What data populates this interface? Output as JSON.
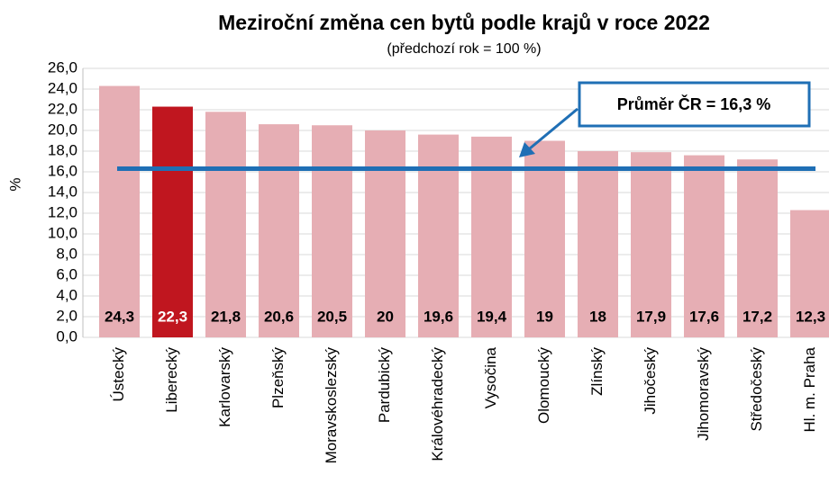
{
  "chart_data": {
    "type": "bar",
    "title": "Meziroční změna cen bytů podle krajů v roce 2022",
    "subtitle": "(předchozí rok = 100 %)",
    "y_label": "%",
    "categories": [
      "Ústecký",
      "Liberecký",
      "Karlovarský",
      "Plzeňský",
      "Moravskoslezský",
      "Pardubický",
      "Královéhradecký",
      "Vysočina",
      "Olomoucký",
      "Zlínský",
      "Jihočeský",
      "Jihomoravský",
      "Středočeský",
      "Hl. m. Praha"
    ],
    "values": [
      24.3,
      22.3,
      21.8,
      20.6,
      20.5,
      20,
      19.6,
      19.4,
      19,
      18,
      17.9,
      17.6,
      17.2,
      12.3
    ],
    "value_labels": [
      "24,3",
      "22,3",
      "21,8",
      "20,6",
      "20,5",
      "20",
      "19,6",
      "19,4",
      "19",
      "18",
      "17,9",
      "17,6",
      "17,2",
      "12,3"
    ],
    "colors": [
      "#e6aeb4",
      "#c0161f",
      "#e6aeb4",
      "#e6aeb4",
      "#e6aeb4",
      "#e6aeb4",
      "#e6aeb4",
      "#e6aeb4",
      "#e6aeb4",
      "#e6aeb4",
      "#e6aeb4",
      "#e6aeb4",
      "#e6aeb4",
      "#e6aeb4"
    ],
    "ylim": [
      0,
      26
    ],
    "yticks": [
      {
        "value": 0,
        "label": "0,0"
      },
      {
        "value": 2,
        "label": "2,0"
      },
      {
        "value": 4,
        "label": "4,0"
      },
      {
        "value": 6,
        "label": "6,0"
      },
      {
        "value": 8,
        "label": "8,0"
      },
      {
        "value": 10,
        "label": "10,0"
      },
      {
        "value": 12,
        "label": "12,0"
      },
      {
        "value": 14,
        "label": "14,0"
      },
      {
        "value": 16,
        "label": "16,0"
      },
      {
        "value": 18,
        "label": "18,0"
      },
      {
        "value": 20,
        "label": "20,0"
      },
      {
        "value": 22,
        "label": "22,0"
      },
      {
        "value": 24,
        "label": "24,0"
      },
      {
        "value": 26,
        "label": "26,0"
      }
    ],
    "grid": true,
    "average_line": {
      "value": 16.3,
      "label": "Průměr ČR = 16,3 %",
      "color": "#1f6fb5"
    }
  }
}
